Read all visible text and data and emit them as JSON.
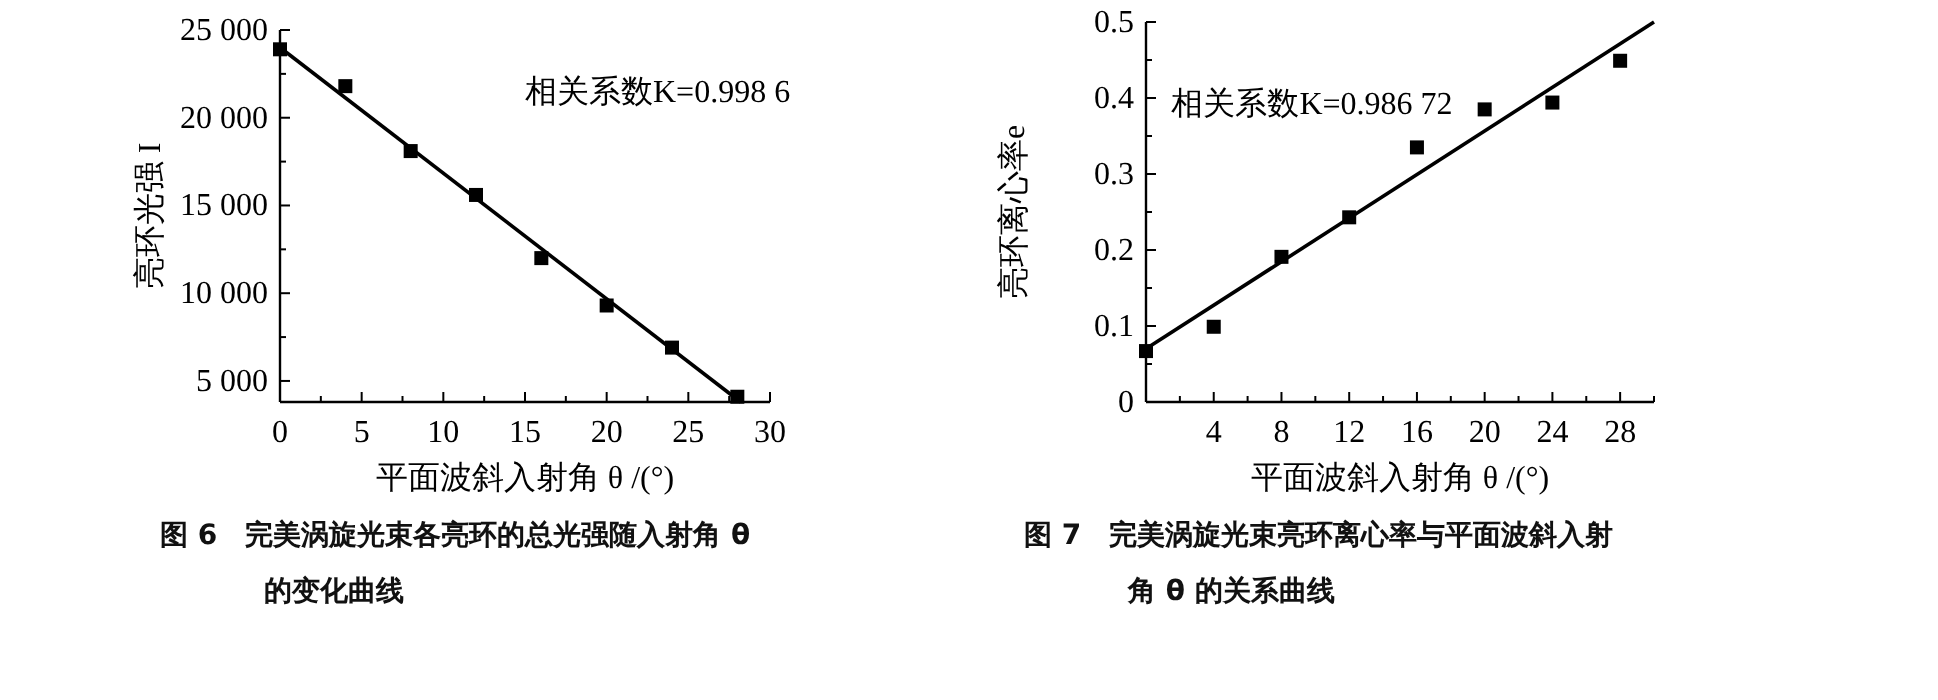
{
  "chart_data": [
    {
      "type": "scatter",
      "xlabel": "平面波斜入射角 θ /(°)",
      "ylabel": "亮环光强 I",
      "xlim": [
        0,
        30
      ],
      "ylim": [
        3800,
        25000
      ],
      "xticks": [
        0,
        {
          "value": 2.5,
          "label": null
        },
        5,
        {
          "value": 7.5,
          "label": null
        },
        10,
        {
          "value": 12.5,
          "label": null
        },
        15,
        {
          "value": 17.5,
          "label": null
        },
        20,
        {
          "value": 22.5,
          "label": null
        },
        25,
        {
          "value": 27.5,
          "label": null
        },
        30
      ],
      "yticks": [
        {
          "value": 5000,
          "label": "5 000"
        },
        {
          "value": 7500,
          "label": null
        },
        {
          "value": 10000,
          "label": "10 000"
        },
        {
          "value": 12500,
          "label": null
        },
        {
          "value": 15000,
          "label": "15 000"
        },
        {
          "value": 17500,
          "label": null
        },
        {
          "value": 20000,
          "label": "20 000"
        },
        {
          "value": 22500,
          "label": null
        },
        {
          "value": 25000,
          "label": "25 000"
        }
      ],
      "series": [
        {
          "marker": "square",
          "color": "#000000",
          "x": [
            0,
            4,
            8,
            12,
            16,
            20,
            24,
            28
          ],
          "values": [
            23900,
            21800,
            18100,
            15600,
            12000,
            9300,
            6900,
            4100
          ]
        },
        {
          "type": "line",
          "marker": "none",
          "color": "#000000",
          "x": [
            0,
            28.2
          ],
          "values": [
            24000,
            3800
          ]
        }
      ],
      "annotations": [
        "相关系数K=0.998 6",
        "图 6　完美涡旋光束各亮环的总光强随入射角 θ 的变化曲线"
      ]
    },
    {
      "type": "scatter",
      "xlabel": "平面波斜入射角 θ /(°)",
      "ylabel": "亮环离心率e",
      "xlim": [
        0,
        30
      ],
      "ylim": [
        0,
        0.5
      ],
      "xticks": [
        {
          "value": 2,
          "label": null
        },
        4,
        {
          "value": 6,
          "label": null
        },
        8,
        {
          "value": 10,
          "label": null
        },
        12,
        {
          "value": 14,
          "label": null
        },
        16,
        {
          "value": 18,
          "label": null
        },
        20,
        {
          "value": 22,
          "label": null
        },
        24,
        {
          "value": 26,
          "label": null
        },
        28,
        {
          "value": 30,
          "label": null
        }
      ],
      "yticks": [
        0,
        {
          "value": 0.05,
          "label": null
        },
        0.1,
        {
          "value": 0.15,
          "label": null
        },
        0.2,
        {
          "value": 0.25,
          "label": null
        },
        0.3,
        {
          "value": 0.35,
          "label": null
        },
        0.4,
        {
          "value": 0.45,
          "label": null
        },
        0.5
      ],
      "series": [
        {
          "marker": "square",
          "color": "#000000",
          "x": [
            0,
            4,
            8,
            12,
            16,
            20,
            24,
            28
          ],
          "values": [
            0.067,
            0.099,
            0.191,
            0.243,
            0.335,
            0.385,
            0.394,
            0.449
          ]
        },
        {
          "type": "line",
          "marker": "none",
          "color": "#000000",
          "x": [
            0,
            30
          ],
          "values": [
            0.07,
            0.5
          ]
        }
      ],
      "annotations": [
        "相关系数K=0.986 72",
        "图 7　完美涡旋光束亮环离心率与平面波斜入射角 θ 的关系曲线"
      ]
    }
  ]
}
